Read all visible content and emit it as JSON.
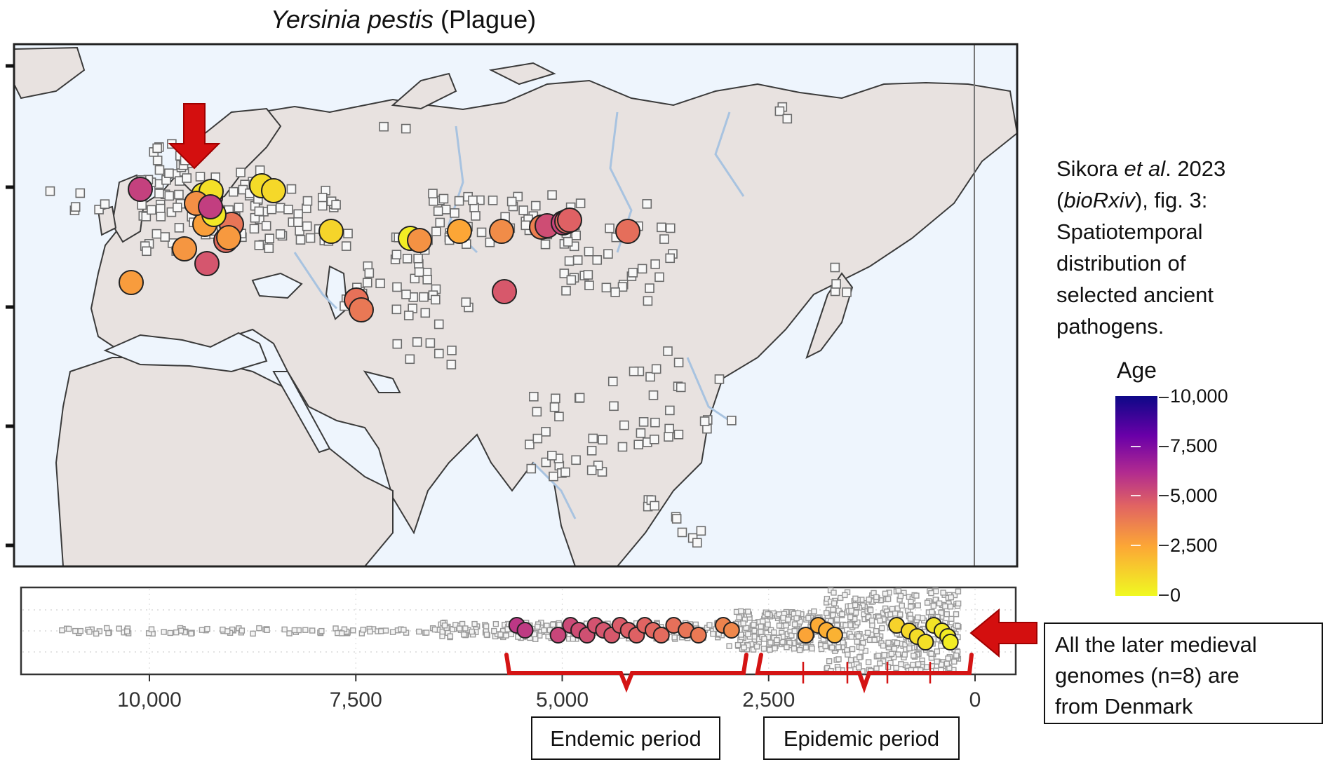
{
  "title_italic": "Yersinia pestis",
  "title_rest": " (Plague)",
  "caption": {
    "line1_a": "Sikora ",
    "line1_b": "et al",
    "line1_c": ". 2023",
    "line2_a": "(",
    "line2_b": "bioRxiv",
    "line2_c": "), fig. 3:",
    "line3": "Spatiotemporal",
    "line4": "distribution of",
    "line5": "selected ancient",
    "line6": "pathogens."
  },
  "legend": {
    "title": "Age",
    "labels": [
      "10,000",
      "7,500",
      "5,000",
      "2,500",
      "0"
    ],
    "colors": [
      "#0d0887",
      "#6a00a8",
      "#b12a90",
      "#e16462",
      "#fca636",
      "#f0f921"
    ]
  },
  "note": {
    "line1": "All the later medieval",
    "line2": "genomes (n=8) are",
    "line3": "from Denmark"
  },
  "periods": {
    "endemic": "Endemic period",
    "epidemic": "Epidemic period"
  },
  "chart_data": {
    "type": "scatter",
    "x_axis": {
      "ticks": [
        10000,
        7500,
        5000,
        2500,
        0
      ],
      "tick_labels": [
        "10,000",
        "7,500",
        "5,000",
        "2,500",
        "0"
      ],
      "range": [
        11500,
        -250
      ],
      "reversed": true
    },
    "color_scale": "plasma, Age 0 to 10,000",
    "highlighted_ages": [
      5550,
      5450,
      5050,
      4900,
      4800,
      4700,
      4600,
      4500,
      4400,
      4300,
      4200,
      4100,
      4000,
      3900,
      3800,
      3650,
      3500,
      3350,
      3050,
      2950,
      2050,
      1900,
      1800,
      1700,
      950,
      800,
      700,
      600,
      500,
      400,
      330,
      300
    ],
    "map_points_age": [
      5200,
      5000,
      3500,
      2200,
      3800,
      4500,
      2400,
      400,
      500,
      600,
      700,
      800,
      900,
      300,
      2600,
      2000,
      2800,
      3200,
      4800,
      5100,
      3900,
      4100,
      3700,
      3600,
      3400,
      4400,
      2300,
      2500,
      2700,
      5300
    ]
  }
}
